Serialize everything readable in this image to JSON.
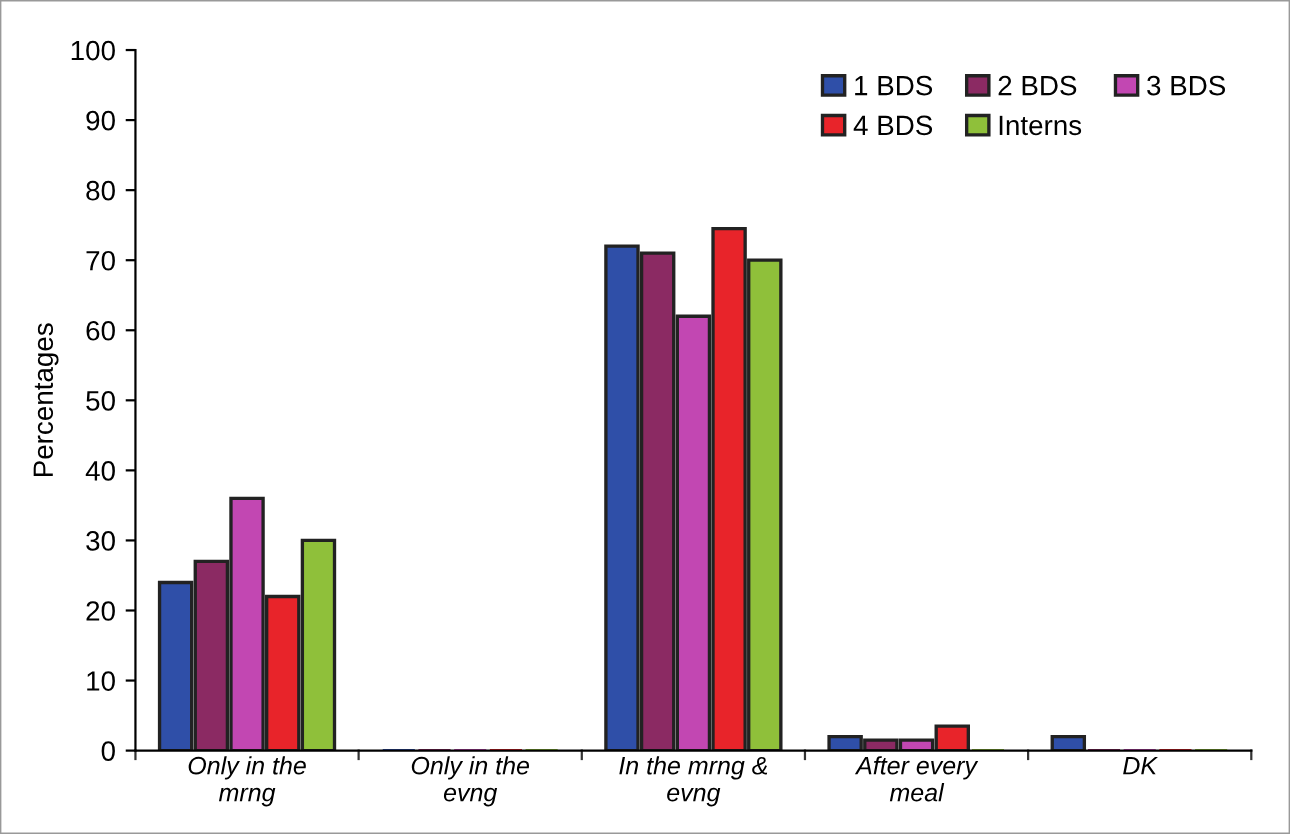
{
  "chart_data": {
    "type": "bar",
    "ylabel": "Percentages",
    "categories": [
      "Only in the\nmrng",
      "Only in the\nevng",
      "In the mrng &\nevng",
      "After every\nmeal",
      "DK"
    ],
    "series": [
      {
        "name": "1 BDS",
        "color": "#2f4fa8",
        "values": [
          24,
          0,
          72,
          2,
          2
        ]
      },
      {
        "name": "2 BDS",
        "color": "#8b2a63",
        "values": [
          27,
          0,
          71,
          1.5,
          0
        ]
      },
      {
        "name": "3 BDS",
        "color": "#c247b2",
        "values": [
          36,
          0,
          62,
          1.5,
          0
        ]
      },
      {
        "name": "4 BDS",
        "color": "#e8242a",
        "values": [
          22,
          0,
          74.5,
          3.5,
          0
        ]
      },
      {
        "name": "Interns",
        "color": "#8fc03a",
        "values": [
          30,
          0,
          70,
          0,
          0
        ]
      }
    ],
    "ylim": [
      0,
      100
    ],
    "yticks": [
      0,
      10,
      20,
      30,
      40,
      50,
      60,
      70,
      80,
      90,
      100
    ],
    "grid": false,
    "legend": "top right"
  }
}
